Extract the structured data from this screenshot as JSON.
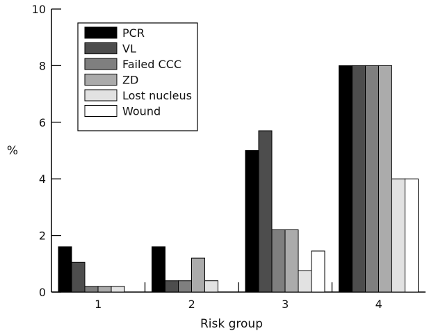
{
  "chart_data": {
    "type": "bar",
    "xlabel": "Risk group",
    "ylabel": "%",
    "ylim": [
      0,
      10
    ],
    "yticks": [
      0,
      2,
      4,
      6,
      8,
      10
    ],
    "categories": [
      "1",
      "2",
      "3",
      "4"
    ],
    "grid": false,
    "legend_position": "top-left",
    "series": [
      {
        "name": "PCR",
        "color": "#000000",
        "values": [
          1.6,
          1.6,
          5.0,
          8.0
        ]
      },
      {
        "name": "VL",
        "color": "#4d4d4d",
        "values": [
          1.05,
          0.4,
          5.7,
          8.0
        ]
      },
      {
        "name": "Failed CCC",
        "color": "#7f7f7f",
        "values": [
          0.2,
          0.4,
          2.2,
          8.0
        ]
      },
      {
        "name": "ZD",
        "color": "#ababab",
        "values": [
          0.2,
          1.2,
          2.2,
          8.0
        ]
      },
      {
        "name": "Lost nucleus",
        "color": "#e2e2e2",
        "values": [
          0.2,
          0.4,
          0.75,
          4.0
        ]
      },
      {
        "name": "Wound",
        "color": "#ffffff",
        "values": [
          null,
          null,
          1.45,
          4.0
        ]
      }
    ]
  }
}
